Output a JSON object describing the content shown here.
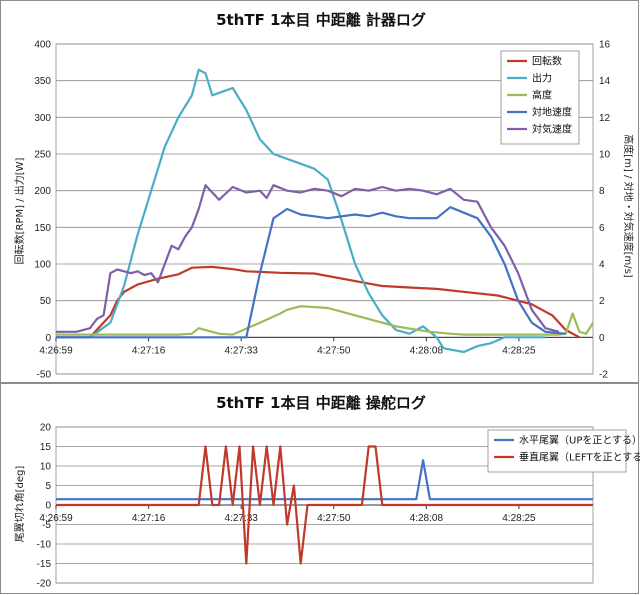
{
  "chart_data": [
    {
      "type": "line",
      "title": "5thTF 1本目 中距離 計器ログ",
      "ylabel": "回転数[RPM] / 出力[W]",
      "y2label": "高度[m] / 対地・対気速度[m/s]",
      "ylim": [
        -50,
        400
      ],
      "yticks": [
        -50,
        0,
        50,
        100,
        150,
        200,
        250,
        300,
        350,
        400
      ],
      "y2lim": [
        -2,
        16
      ],
      "y2ticks": [
        -2,
        0,
        2,
        4,
        6,
        8,
        10,
        12,
        14,
        16
      ],
      "x_ticks": [
        "4:26:59",
        "4:27:16",
        "4:27:33",
        "4:27:50",
        "4:28:08",
        "4:28:25"
      ],
      "grid": true,
      "legend_position": "top-right",
      "series": [
        {
          "name": "回転数",
          "axis": "left",
          "color": "#c0392b",
          "x": [
            0,
            5,
            8,
            9,
            10,
            12,
            15,
            18,
            20,
            23,
            26,
            28,
            33,
            38,
            45,
            48,
            52,
            56,
            62,
            65,
            70,
            73,
            75,
            77
          ],
          "y": [
            0,
            0,
            30,
            50,
            62,
            72,
            80,
            86,
            95,
            96,
            93,
            90,
            88,
            87,
            75,
            70,
            68,
            66,
            60,
            57,
            45,
            30,
            10,
            0
          ]
        },
        {
          "name": "出力",
          "axis": "left",
          "color": "#4aacc6",
          "x": [
            0,
            5,
            8,
            10,
            12,
            14,
            16,
            18,
            20,
            21,
            22,
            23,
            26,
            28,
            30,
            32,
            35,
            38,
            40,
            42,
            44,
            46,
            48,
            50,
            52,
            54,
            56,
            57,
            60,
            62,
            64,
            66,
            70,
            72
          ],
          "y": [
            0,
            0,
            20,
            70,
            140,
            200,
            260,
            300,
            330,
            365,
            360,
            330,
            340,
            310,
            270,
            250,
            240,
            230,
            215,
            160,
            100,
            60,
            30,
            10,
            5,
            15,
            0,
            -15,
            -20,
            -12,
            -8,
            0,
            0,
            0
          ]
        },
        {
          "name": "高度",
          "axis": "right",
          "color": "#9bbb59",
          "x": [
            0,
            5,
            10,
            15,
            18,
            20,
            21,
            24,
            26,
            30,
            33,
            34,
            36,
            40,
            45,
            50,
            55,
            58,
            60,
            65,
            70,
            74,
            75,
            76,
            77,
            78,
            79
          ],
          "y": [
            0.15,
            0.15,
            0.15,
            0.15,
            0.15,
            0.2,
            0.5,
            0.2,
            0.15,
            0.8,
            1.3,
            1.5,
            1.7,
            1.6,
            1.1,
            0.6,
            0.3,
            0.2,
            0.15,
            0.15,
            0.15,
            0.15,
            0.2,
            1.3,
            0.3,
            0.2,
            0.8
          ]
        },
        {
          "name": "対地速度",
          "axis": "right",
          "color": "#4472c4",
          "x": [
            0,
            5,
            9,
            12,
            14,
            16,
            18,
            20,
            22,
            24,
            26,
            28,
            30,
            32,
            34,
            36,
            38,
            40,
            42,
            44,
            46,
            48,
            50,
            52,
            54,
            56,
            58,
            60,
            62,
            64,
            66,
            68,
            70,
            72,
            75
          ],
          "y": [
            0,
            0,
            0,
            0,
            0,
            0,
            0,
            0,
            0,
            0,
            0,
            0,
            3.5,
            6.5,
            7.0,
            6.7,
            6.6,
            6.5,
            6.6,
            6.7,
            6.6,
            6.8,
            6.6,
            6.5,
            6.5,
            6.5,
            7.1,
            6.8,
            6.5,
            5.5,
            4.0,
            2.0,
            0.8,
            0.3,
            0.2
          ]
        },
        {
          "name": "対気速度",
          "axis": "right",
          "color": "#7f5fa8",
          "x": [
            0,
            3,
            5,
            6,
            7,
            8,
            9,
            10,
            11,
            12,
            13,
            14,
            15,
            16,
            17,
            18,
            19,
            20,
            21,
            22,
            24,
            26,
            28,
            30,
            31,
            32,
            34,
            36,
            38,
            40,
            42,
            44,
            46,
            48,
            50,
            52,
            54,
            56,
            58,
            60,
            62,
            64,
            66,
            68,
            70,
            72,
            74
          ],
          "y": [
            0.3,
            0.3,
            0.5,
            1.0,
            1.2,
            3.5,
            3.7,
            3.6,
            3.5,
            3.6,
            3.4,
            3.5,
            3.0,
            4.0,
            5.0,
            4.8,
            5.5,
            6.0,
            7.0,
            8.3,
            7.5,
            8.2,
            7.9,
            8.0,
            7.6,
            8.3,
            8.0,
            7.9,
            8.1,
            8.0,
            7.7,
            8.1,
            8.0,
            8.2,
            8.0,
            8.1,
            8.0,
            7.8,
            8.1,
            7.5,
            7.4,
            6.0,
            5.0,
            3.5,
            1.5,
            0.5,
            0.3
          ]
        }
      ]
    },
    {
      "type": "line",
      "title": "5thTF 1本目 中距離 操舵ログ",
      "ylabel": "尾翼切れ角[deg]",
      "ylim": [
        -20,
        20
      ],
      "yticks": [
        -20,
        -15,
        -10,
        -5,
        0,
        5,
        10,
        15,
        20
      ],
      "x_ticks": [
        "4:26:59",
        "4:27:16",
        "4:27:33",
        "4:27:50",
        "4:28:08",
        "4:28:25"
      ],
      "grid": true,
      "legend_position": "top-right",
      "series": [
        {
          "name": "水平尾翼（UPを正とする）",
          "color": "#4472c4",
          "x": [
            0,
            52,
            53,
            54,
            55,
            79
          ],
          "y": [
            1.5,
            1.5,
            1.5,
            11.5,
            1.5,
            1.5
          ]
        },
        {
          "name": "垂直尾翼（LEFTを正とする）",
          "color": "#c0392b",
          "x": [
            0,
            21,
            22,
            23,
            24,
            25,
            26,
            27,
            28,
            29,
            30,
            31,
            32,
            33,
            34,
            35,
            36,
            37,
            38,
            45,
            46,
            47,
            48,
            79
          ],
          "y": [
            0,
            0,
            15,
            0,
            0,
            15,
            0,
            15,
            -15,
            15,
            0,
            15,
            0,
            15,
            -5,
            5,
            -15,
            0,
            0,
            0,
            15,
            15,
            0,
            0
          ]
        }
      ]
    }
  ]
}
